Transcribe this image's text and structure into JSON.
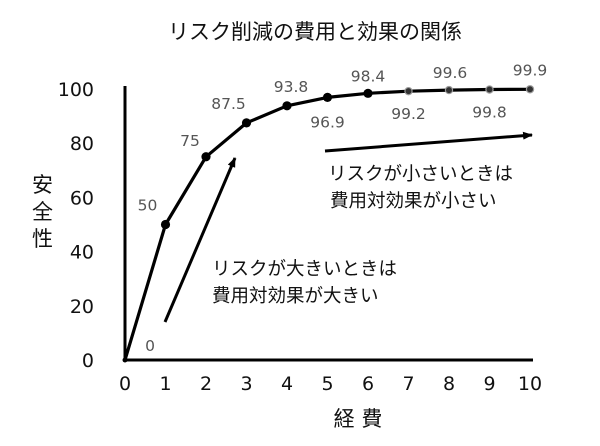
{
  "chart_data": {
    "type": "line",
    "title": "リスク削減の費用と効果の関係",
    "xlabel": "経 費",
    "ylabel": "安全性",
    "x": [
      0,
      1,
      2,
      3,
      4,
      5,
      6,
      7,
      8,
      9,
      10
    ],
    "xticks": [
      "0",
      "1",
      "2",
      "3",
      "4",
      "5",
      "6",
      "7",
      "8",
      "9",
      "10"
    ],
    "yticks": [
      "0",
      "20",
      "40",
      "60",
      "80",
      "100"
    ],
    "xlim": [
      0,
      10
    ],
    "ylim": [
      0,
      100
    ],
    "grid": false,
    "series": [
      {
        "values": [
          0,
          50,
          75,
          87.5,
          93.8,
          96.9,
          98.4,
          99.2,
          99.6,
          99.8,
          99.9
        ],
        "labels": [
          "0",
          "50",
          "75",
          "87.5",
          "93.8",
          "96.9",
          "98.4",
          "99.2",
          "99.6",
          "99.8",
          "99.9"
        ],
        "color": "#000000"
      }
    ],
    "annotations": {
      "high_risk": [
        "リスクが大きいときは",
        "費用対効果が大きい"
      ],
      "low_risk": [
        "リスクが小さいときは",
        "費用対効果が小さい"
      ]
    }
  }
}
